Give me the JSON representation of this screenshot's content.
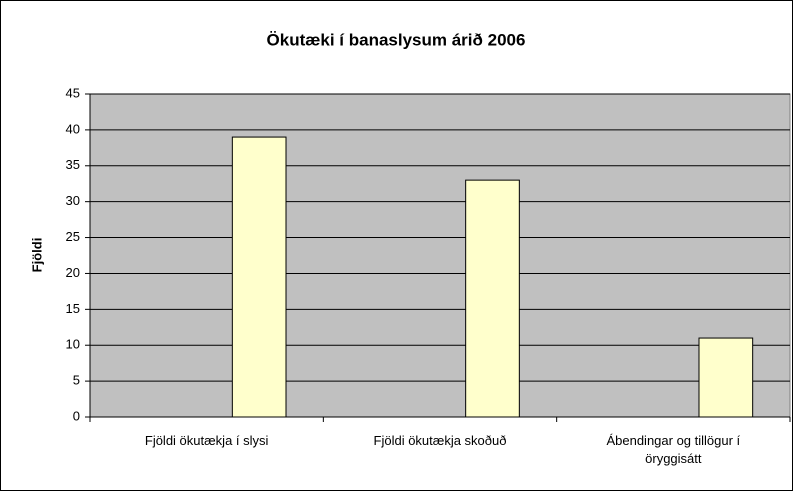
{
  "chart_data": {
    "type": "bar",
    "title": "Ökutæki í banaslysum árið 2006",
    "y_label": "Fjöldi",
    "categories": [
      "Fjöldi ökutækja í slysi",
      "Fjöldi ökutækja skoðuð",
      "Ábendingar og tillögur í öryggisátt"
    ],
    "values": [
      39,
      33,
      11
    ],
    "color": "#ffffcc",
    "ylim": [
      0,
      45
    ],
    "yticks": [
      0,
      5,
      10,
      15,
      20,
      25,
      30,
      35,
      40,
      45
    ],
    "grid": true
  }
}
